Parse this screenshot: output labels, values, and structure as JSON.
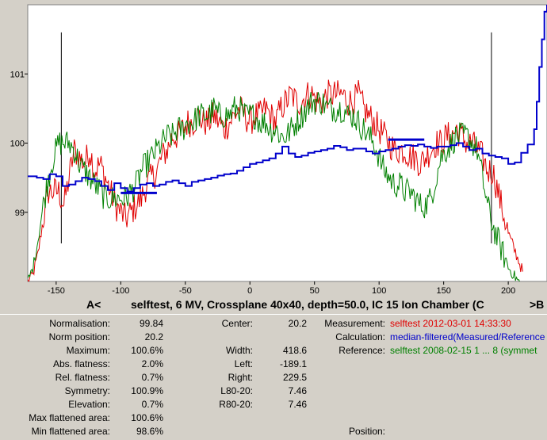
{
  "caption": {
    "left_nav": "A<",
    "title": "selftest, 6 MV, Crossplane 40x40, depth=50.0, IC 15 Ion Chamber (C",
    "right_nav": ">B"
  },
  "stats_left": [
    {
      "label": "Normalisation:",
      "value": "99.84"
    },
    {
      "label": "Norm position:",
      "value": "20.2"
    },
    {
      "label": "Maximum:",
      "value": "100.6%"
    },
    {
      "label": "Abs. flatness:",
      "value": "2.0%"
    },
    {
      "label": "Rel. flatness:",
      "value": "0.7%"
    },
    {
      "label": "Symmetry:",
      "value": "100.9%"
    },
    {
      "label": "Elevation:",
      "value": "0.7%"
    },
    {
      "label": "Max flattened area:",
      "value": "100.6%"
    },
    {
      "label": "Min flattened area:",
      "value": "98.6%"
    }
  ],
  "stats_mid": [
    {
      "label": "Center:",
      "value": "20.2"
    },
    {
      "label": "",
      "value": ""
    },
    {
      "label": "Width:",
      "value": "418.6"
    },
    {
      "label": "Left:",
      "value": "-189.1"
    },
    {
      "label": "Right:",
      "value": "229.5"
    },
    {
      "label": "L80-20:",
      "value": "7.46"
    },
    {
      "label": "R80-20:",
      "value": "7.46"
    }
  ],
  "info": {
    "measurement_label": "Measurement:",
    "measurement_value": "selftest 2012-03-01 14:33:30",
    "calculation_label": "Calculation:",
    "calculation_value": "median-filtered(Measured/Reference",
    "reference_label": "Reference:",
    "reference_value": "selftest 2008-02-15 1 ... 8 (symmet",
    "position_label": "Position:"
  },
  "colors": {
    "measurement": "#e00000",
    "calculation": "#0000cc",
    "reference": "#008000",
    "plot_background": "#ffffff",
    "panel_background": "#d4d0c8"
  },
  "chart_data": {
    "type": "line",
    "xlim": [
      -172,
      230
    ],
    "ylim": [
      98.0,
      102.0
    ],
    "x_ticks": [
      -150,
      -100,
      -50,
      0,
      50,
      100,
      150,
      200
    ],
    "y_ticks": [
      99,
      100,
      101
    ],
    "grid": false,
    "field_edges": [
      -146,
      187
    ],
    "flatness_markers": [
      {
        "x": [
          -100,
          -72
        ],
        "y": 99.28
      },
      {
        "x": [
          107,
          135
        ],
        "y": 100.05
      }
    ],
    "series": [
      {
        "name": "Measurement",
        "x": [
          -172,
          -168,
          -164,
          -160,
          -156,
          -152,
          -148,
          -144,
          -140,
          -136,
          -132,
          -128,
          -124,
          -120,
          -116,
          -112,
          -108,
          -104,
          -100,
          -96,
          -92,
          -88,
          -84,
          -80,
          -76,
          -72,
          -68,
          -64,
          -60,
          -56,
          -52,
          -48,
          -44,
          -40,
          -36,
          -32,
          -28,
          -24,
          -20,
          -16,
          -12,
          -8,
          -4,
          0,
          4,
          8,
          12,
          16,
          20,
          24,
          28,
          32,
          36,
          40,
          44,
          48,
          52,
          56,
          60,
          64,
          68,
          72,
          76,
          80,
          84,
          88,
          92,
          96,
          100,
          104,
          108,
          112,
          116,
          120,
          124,
          128,
          132,
          136,
          140,
          144,
          148,
          152,
          156,
          160,
          164,
          168,
          172,
          176,
          180,
          184,
          188,
          192,
          196,
          200,
          204,
          208,
          212
        ],
        "y": [
          98.0,
          98.1,
          98.4,
          98.9,
          99.3,
          99.3,
          99.3,
          99.1,
          99.5,
          99.9,
          99.8,
          99.7,
          99.9,
          99.6,
          99.7,
          99.5,
          99.3,
          99.1,
          99.0,
          98.9,
          99.0,
          99.1,
          99.2,
          99.4,
          99.5,
          99.6,
          99.8,
          99.9,
          100.1,
          100.1,
          100.2,
          100.3,
          100.3,
          100.4,
          100.3,
          100.3,
          100.4,
          100.3,
          100.2,
          100.3,
          100.4,
          100.5,
          100.4,
          100.3,
          100.4,
          100.4,
          100.5,
          100.4,
          100.3,
          100.5,
          100.6,
          100.7,
          100.6,
          100.6,
          100.7,
          100.7,
          100.6,
          100.6,
          100.7,
          100.7,
          100.7,
          100.7,
          100.6,
          100.6,
          100.7,
          100.5,
          100.4,
          100.3,
          100.2,
          100.1,
          100.0,
          99.9,
          99.9,
          99.9,
          99.8,
          99.8,
          99.7,
          99.8,
          99.9,
          100.0,
          100.0,
          100.1,
          100.1,
          100.2,
          100.1,
          100.0,
          100.0,
          99.9,
          99.8,
          99.6,
          99.6,
          99.3,
          99.0,
          98.7,
          98.5,
          98.3,
          98.1
        ]
      },
      {
        "name": "Reference",
        "x": [
          -172,
          -168,
          -164,
          -160,
          -156,
          -152,
          -148,
          -144,
          -140,
          -136,
          -132,
          -128,
          -124,
          -120,
          -116,
          -112,
          -108,
          -104,
          -100,
          -96,
          -92,
          -88,
          -84,
          -80,
          -76,
          -72,
          -68,
          -64,
          -60,
          -56,
          -52,
          -48,
          -44,
          -40,
          -36,
          -32,
          -28,
          -24,
          -20,
          -16,
          -12,
          -8,
          -4,
          0,
          4,
          8,
          12,
          16,
          20,
          24,
          28,
          32,
          36,
          40,
          44,
          48,
          52,
          56,
          60,
          64,
          68,
          72,
          76,
          80,
          84,
          88,
          92,
          96,
          100,
          104,
          108,
          112,
          116,
          120,
          124,
          128,
          132,
          136,
          140,
          144,
          148,
          152,
          156,
          160,
          164,
          168,
          172,
          176,
          180,
          184,
          188,
          192,
          196,
          200,
          204,
          208,
          212
        ],
        "y": [
          98.0,
          98.2,
          98.6,
          99.1,
          99.5,
          99.8,
          100.0,
          100.0,
          100.0,
          99.9,
          99.7,
          99.6,
          99.5,
          99.4,
          99.3,
          99.2,
          99.2,
          99.2,
          99.2,
          99.2,
          99.3,
          99.4,
          99.6,
          99.7,
          99.8,
          99.9,
          100.0,
          100.1,
          100.1,
          100.2,
          100.2,
          100.3,
          100.3,
          100.4,
          100.4,
          100.4,
          100.5,
          100.4,
          100.4,
          100.4,
          100.5,
          100.5,
          100.4,
          100.4,
          100.4,
          100.3,
          100.3,
          100.2,
          100.2,
          100.1,
          100.1,
          100.2,
          100.3,
          100.4,
          100.5,
          100.6,
          100.6,
          100.6,
          100.5,
          100.5,
          100.5,
          100.5,
          100.4,
          100.4,
          100.3,
          100.2,
          100.1,
          100.0,
          99.8,
          99.6,
          99.5,
          99.4,
          99.4,
          99.3,
          99.3,
          99.2,
          99.1,
          99.1,
          99.2,
          99.5,
          99.8,
          99.9,
          100.0,
          100.1,
          100.1,
          100.1,
          100.0,
          99.9,
          99.5,
          99.1,
          98.8,
          98.6,
          98.4,
          98.2,
          98.1,
          98.0,
          97.9
        ]
      },
      {
        "name": "Calculation",
        "x": [
          -172,
          -165,
          -160,
          -155,
          -150,
          -145,
          -140,
          -135,
          -130,
          -125,
          -120,
          -115,
          -110,
          -105,
          -100,
          -95,
          -90,
          -85,
          -80,
          -75,
          -70,
          -65,
          -60,
          -55,
          -50,
          -45,
          -40,
          -35,
          -30,
          -25,
          -20,
          -15,
          -10,
          -5,
          0,
          5,
          10,
          15,
          20,
          25,
          30,
          35,
          40,
          45,
          50,
          55,
          60,
          65,
          70,
          75,
          80,
          85,
          90,
          95,
          100,
          105,
          110,
          115,
          120,
          125,
          130,
          135,
          140,
          145,
          150,
          155,
          160,
          165,
          170,
          175,
          180,
          185,
          190,
          195,
          200,
          205,
          210,
          215,
          220,
          222,
          224,
          226,
          228,
          230
        ],
        "y": [
          99.52,
          99.5,
          99.48,
          99.55,
          99.52,
          99.38,
          99.4,
          99.45,
          99.5,
          99.48,
          99.45,
          99.38,
          99.32,
          99.42,
          99.35,
          99.3,
          99.35,
          99.4,
          99.42,
          99.38,
          99.4,
          99.44,
          99.46,
          99.42,
          99.38,
          99.44,
          99.46,
          99.48,
          99.5,
          99.53,
          99.55,
          99.56,
          99.6,
          99.65,
          99.7,
          99.72,
          99.75,
          99.78,
          99.85,
          99.95,
          99.85,
          99.8,
          99.82,
          99.86,
          99.88,
          99.9,
          99.92,
          99.96,
          99.94,
          99.9,
          99.92,
          99.92,
          99.88,
          99.85,
          99.88,
          99.9,
          99.92,
          99.95,
          99.97,
          99.96,
          99.98,
          99.95,
          99.93,
          99.95,
          99.95,
          99.97,
          100.0,
          99.95,
          99.9,
          99.92,
          99.85,
          99.82,
          99.8,
          99.78,
          99.7,
          99.72,
          99.86,
          99.98,
          100.2,
          100.6,
          101.1,
          101.5,
          101.9,
          102.05
        ]
      }
    ]
  }
}
